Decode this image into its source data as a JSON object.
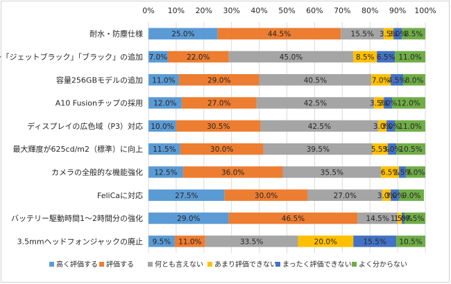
{
  "chart_data": {
    "type": "bar",
    "orientation": "horizontal",
    "stacked": "percent",
    "xlim": [
      0,
      100
    ],
    "x_ticks": [
      "0%",
      "10%",
      "20%",
      "30%",
      "40%",
      "50%",
      "60%",
      "70%",
      "80%",
      "90%",
      "100%"
    ],
    "grid": true,
    "legend": "bottom",
    "categories": [
      "耐水・防塵仕様",
      "新カラー「ジェットブラック」「ブラック」の追加",
      "容量256GBモデルの追加",
      "A10 Fusionチップの採用",
      "ディスプレイの広色域（P3）対応",
      "最大輝度が625cd/m2（標準）に向上",
      "カメラの全般的な機能強化",
      "FeliCaに対応",
      "バッテリー駆動時間1～2時間分の強化",
      "3.5mmヘッドフォンジャックの廃止"
    ],
    "series": [
      {
        "name": "高く評価する",
        "color": "#5b9bd5",
        "values": [
          25.0,
          7.0,
          11.0,
          12.0,
          10.0,
          11.5,
          12.5,
          27.5,
          29.0,
          9.5
        ],
        "labels": [
          "25.0%",
          "7.0%",
          "11.0%",
          "12.0%",
          "10.0%",
          "11.5%",
          "12.5%",
          "27.5%",
          "29.0%",
          "9.5%"
        ]
      },
      {
        "name": "評価する",
        "color": "#ed7d31",
        "values": [
          44.5,
          22.0,
          29.0,
          27.0,
          30.5,
          30.0,
          36.0,
          30.0,
          46.5,
          11.0
        ],
        "labels": [
          "44.5%",
          "22.0%",
          "29.0%",
          "27.0%",
          "30.5%",
          "30.0%",
          "36.0%",
          "30.0%",
          "46.5%",
          "11.0%"
        ]
      },
      {
        "name": "何とも言えない",
        "color": "#a5a5a5",
        "values": [
          15.5,
          45.0,
          40.5,
          42.5,
          42.5,
          39.5,
          35.5,
          27.0,
          14.5,
          33.5
        ],
        "labels": [
          "15.5%",
          "45.0%",
          "40.5%",
          "42.5%",
          "42.5%",
          "39.5%",
          "35.5%",
          "27.0%",
          "14.5%",
          "33.5%"
        ]
      },
      {
        "name": "あまり評価できない",
        "color": "#ffc000",
        "values": [
          3.5,
          8.5,
          7.0,
          3.5,
          3.0,
          5.5,
          6.5,
          3.0,
          1.5,
          20.0
        ],
        "labels": [
          "3.5%",
          "8.5%",
          "7.0%",
          "3.5%",
          "3.0%",
          "5.5%",
          "6.5%",
          "3.0%",
          "1.5%",
          "20.0%"
        ]
      },
      {
        "name": "まったく評価できない",
        "color": "#4472c4",
        "values": [
          3.0,
          6.5,
          4.5,
          3.0,
          3.0,
          3.0,
          2.5,
          3.0,
          1.0,
          15.5
        ],
        "labels": [
          "3.0%",
          "6.5%",
          "4.5%",
          "3.0%",
          "3.0%",
          "3.0%",
          "2.5%",
          "3.0%",
          "1.0%",
          "15.5%"
        ]
      },
      {
        "name": "よく分からない",
        "color": "#70ad47",
        "values": [
          8.5,
          11.0,
          8.0,
          12.0,
          11.0,
          10.5,
          7.0,
          9.0,
          7.5,
          10.5
        ],
        "labels": [
          "8.5%",
          "11.0%",
          "8.0%",
          "12.0%",
          "11.0%",
          "10.5%",
          "7.0%",
          "9.0%",
          "7.5%",
          "10.5%"
        ]
      }
    ]
  }
}
